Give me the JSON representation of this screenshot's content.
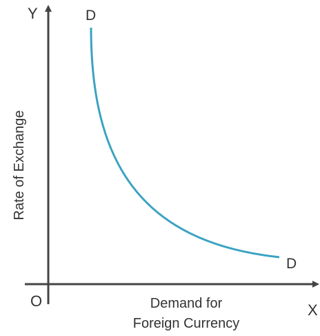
{
  "diagram": {
    "y_axis_letter": "Y",
    "x_axis_letter": "X",
    "origin_label": "O",
    "y_axis_title": "Rate of Exchange",
    "x_axis_title_lines": [
      "Demand for",
      "Foreign Currency"
    ],
    "curve_start_label": "D",
    "curve_end_label": "D",
    "curve_color": "#3aa3c1",
    "axis_color": "#444444"
  }
}
